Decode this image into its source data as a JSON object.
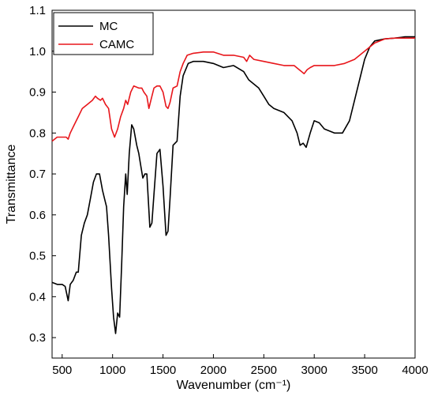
{
  "chart_data": {
    "type": "line",
    "title": "",
    "xlabel": "Wavenumber (cm⁻¹)",
    "ylabel": "Transmittance",
    "xlim": [
      400,
      4000
    ],
    "ylim": [
      0.25,
      1.1
    ],
    "x_ticks": [
      500,
      1000,
      1500,
      2000,
      2500,
      3000,
      3500,
      4000
    ],
    "y_ticks": [
      0.3,
      0.4,
      0.5,
      0.6,
      0.7,
      0.8,
      0.9,
      1.0,
      1.1
    ],
    "x_tick_labels": [
      "500",
      "1000",
      "1500",
      "2000",
      "2500",
      "3000",
      "3500",
      "4000"
    ],
    "y_tick_labels": [
      "0.3",
      "0.4",
      "0.5",
      "0.6",
      "0.7",
      "0.8",
      "0.9",
      "1.0",
      "1.1"
    ],
    "grid": false,
    "legend_position": "top-left",
    "series": [
      {
        "name": "MC",
        "color": "#000000",
        "points": [
          [
            400,
            0.435
          ],
          [
            450,
            0.43
          ],
          [
            500,
            0.43
          ],
          [
            530,
            0.425
          ],
          [
            560,
            0.39
          ],
          [
            580,
            0.43
          ],
          [
            610,
            0.44
          ],
          [
            640,
            0.46
          ],
          [
            660,
            0.46
          ],
          [
            690,
            0.55
          ],
          [
            720,
            0.58
          ],
          [
            750,
            0.6
          ],
          [
            780,
            0.64
          ],
          [
            810,
            0.68
          ],
          [
            840,
            0.7
          ],
          [
            870,
            0.7
          ],
          [
            900,
            0.66
          ],
          [
            920,
            0.64
          ],
          [
            940,
            0.62
          ],
          [
            960,
            0.55
          ],
          [
            990,
            0.42
          ],
          [
            1010,
            0.35
          ],
          [
            1030,
            0.31
          ],
          [
            1050,
            0.36
          ],
          [
            1070,
            0.35
          ],
          [
            1090,
            0.48
          ],
          [
            1110,
            0.62
          ],
          [
            1130,
            0.7
          ],
          [
            1145,
            0.65
          ],
          [
            1165,
            0.75
          ],
          [
            1190,
            0.82
          ],
          [
            1210,
            0.81
          ],
          [
            1240,
            0.77
          ],
          [
            1260,
            0.75
          ],
          [
            1280,
            0.72
          ],
          [
            1300,
            0.69
          ],
          [
            1320,
            0.7
          ],
          [
            1340,
            0.7
          ],
          [
            1370,
            0.57
          ],
          [
            1390,
            0.58
          ],
          [
            1410,
            0.65
          ],
          [
            1440,
            0.75
          ],
          [
            1470,
            0.76
          ],
          [
            1500,
            0.67
          ],
          [
            1530,
            0.55
          ],
          [
            1550,
            0.56
          ],
          [
            1570,
            0.64
          ],
          [
            1600,
            0.77
          ],
          [
            1640,
            0.78
          ],
          [
            1670,
            0.89
          ],
          [
            1700,
            0.94
          ],
          [
            1750,
            0.97
          ],
          [
            1800,
            0.975
          ],
          [
            1900,
            0.975
          ],
          [
            2000,
            0.97
          ],
          [
            2100,
            0.96
          ],
          [
            2200,
            0.965
          ],
          [
            2300,
            0.95
          ],
          [
            2350,
            0.93
          ],
          [
            2400,
            0.92
          ],
          [
            2450,
            0.91
          ],
          [
            2500,
            0.89
          ],
          [
            2550,
            0.87
          ],
          [
            2600,
            0.86
          ],
          [
            2700,
            0.85
          ],
          [
            2780,
            0.83
          ],
          [
            2830,
            0.8
          ],
          [
            2860,
            0.77
          ],
          [
            2890,
            0.775
          ],
          [
            2920,
            0.765
          ],
          [
            2960,
            0.8
          ],
          [
            3000,
            0.83
          ],
          [
            3050,
            0.825
          ],
          [
            3100,
            0.81
          ],
          [
            3200,
            0.8
          ],
          [
            3280,
            0.8
          ],
          [
            3350,
            0.83
          ],
          [
            3400,
            0.88
          ],
          [
            3450,
            0.93
          ],
          [
            3500,
            0.98
          ],
          [
            3550,
            1.01
          ],
          [
            3600,
            1.025
          ],
          [
            3700,
            1.03
          ],
          [
            3800,
            1.032
          ],
          [
            3900,
            1.035
          ],
          [
            4000,
            1.035
          ]
        ]
      },
      {
        "name": "CAMC",
        "color": "#e8161b",
        "points": [
          [
            400,
            0.78
          ],
          [
            450,
            0.79
          ],
          [
            500,
            0.79
          ],
          [
            540,
            0.79
          ],
          [
            560,
            0.785
          ],
          [
            580,
            0.8
          ],
          [
            620,
            0.82
          ],
          [
            660,
            0.84
          ],
          [
            700,
            0.86
          ],
          [
            750,
            0.87
          ],
          [
            800,
            0.88
          ],
          [
            830,
            0.89
          ],
          [
            850,
            0.885
          ],
          [
            880,
            0.88
          ],
          [
            900,
            0.885
          ],
          [
            930,
            0.87
          ],
          [
            960,
            0.86
          ],
          [
            990,
            0.81
          ],
          [
            1020,
            0.79
          ],
          [
            1050,
            0.81
          ],
          [
            1080,
            0.84
          ],
          [
            1110,
            0.86
          ],
          [
            1130,
            0.88
          ],
          [
            1150,
            0.87
          ],
          [
            1180,
            0.9
          ],
          [
            1210,
            0.915
          ],
          [
            1260,
            0.91
          ],
          [
            1290,
            0.91
          ],
          [
            1310,
            0.9
          ],
          [
            1340,
            0.89
          ],
          [
            1360,
            0.86
          ],
          [
            1380,
            0.88
          ],
          [
            1410,
            0.91
          ],
          [
            1440,
            0.915
          ],
          [
            1470,
            0.915
          ],
          [
            1500,
            0.9
          ],
          [
            1530,
            0.865
          ],
          [
            1550,
            0.86
          ],
          [
            1570,
            0.875
          ],
          [
            1600,
            0.91
          ],
          [
            1640,
            0.915
          ],
          [
            1670,
            0.95
          ],
          [
            1700,
            0.97
          ],
          [
            1740,
            0.99
          ],
          [
            1800,
            0.995
          ],
          [
            1900,
            0.998
          ],
          [
            2000,
            0.998
          ],
          [
            2100,
            0.99
          ],
          [
            2200,
            0.99
          ],
          [
            2300,
            0.985
          ],
          [
            2330,
            0.975
          ],
          [
            2360,
            0.99
          ],
          [
            2400,
            0.98
          ],
          [
            2500,
            0.975
          ],
          [
            2600,
            0.97
          ],
          [
            2700,
            0.965
          ],
          [
            2800,
            0.965
          ],
          [
            2850,
            0.955
          ],
          [
            2900,
            0.945
          ],
          [
            2930,
            0.955
          ],
          [
            2960,
            0.96
          ],
          [
            3000,
            0.965
          ],
          [
            3100,
            0.965
          ],
          [
            3200,
            0.965
          ],
          [
            3300,
            0.97
          ],
          [
            3400,
            0.98
          ],
          [
            3500,
            1.0
          ],
          [
            3600,
            1.02
          ],
          [
            3700,
            1.03
          ],
          [
            3800,
            1.032
          ],
          [
            3900,
            1.032
          ],
          [
            4000,
            1.032
          ]
        ]
      }
    ]
  }
}
